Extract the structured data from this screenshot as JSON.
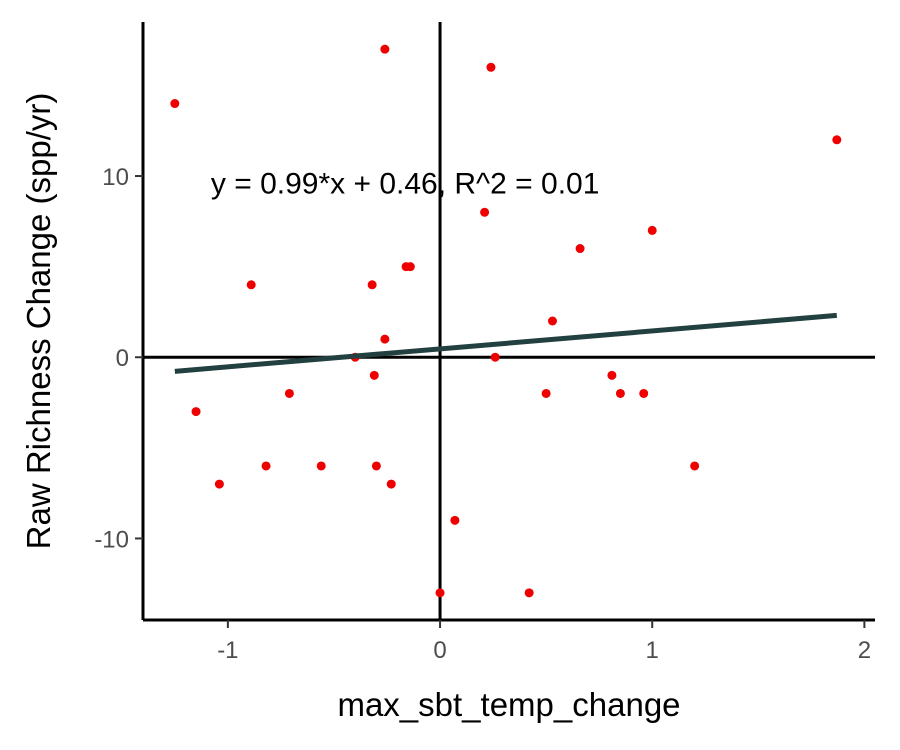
{
  "chart_data": {
    "type": "scatter",
    "title": "",
    "xlabel": "max_sbt_temp_change",
    "ylabel": "Raw Richness Change (spp/yr)",
    "xlim": [
      -1.4,
      2.05
    ],
    "ylim": [
      -14.5,
      18.5
    ],
    "xticks": [
      -1,
      0,
      1,
      2
    ],
    "yticks": [
      -10,
      0,
      10
    ],
    "xtick_labels": [
      "-1",
      "0",
      "1",
      "2"
    ],
    "ytick_labels": [
      "-10",
      "0",
      "10"
    ],
    "reference_lines": {
      "x": 0,
      "y": 0
    },
    "annotation": "y = 0.99*x + 0.46, R^2 = 0.01",
    "annotation_position": {
      "x": -1.08,
      "y": 9.6
    },
    "fit_line": {
      "slope": 0.99,
      "intercept": 0.46,
      "x_range": [
        -1.25,
        1.87
      ],
      "color": "#22403f"
    },
    "point_color": "#ee0000",
    "grid": false,
    "points": [
      {
        "x": -1.25,
        "y": 14
      },
      {
        "x": -0.26,
        "y": 17
      },
      {
        "x": 0.24,
        "y": 16
      },
      {
        "x": 1.87,
        "y": 12
      },
      {
        "x": 0.21,
        "y": 8
      },
      {
        "x": 1.0,
        "y": 7
      },
      {
        "x": 0.66,
        "y": 6
      },
      {
        "x": -0.16,
        "y": 5
      },
      {
        "x": -0.14,
        "y": 5
      },
      {
        "x": -0.89,
        "y": 4
      },
      {
        "x": -0.32,
        "y": 4
      },
      {
        "x": 0.53,
        "y": 2
      },
      {
        "x": -0.26,
        "y": 1
      },
      {
        "x": -0.4,
        "y": 0
      },
      {
        "x": 0.26,
        "y": 0
      },
      {
        "x": -0.31,
        "y": -1
      },
      {
        "x": 0.81,
        "y": -1
      },
      {
        "x": -0.71,
        "y": -2
      },
      {
        "x": 0.5,
        "y": -2
      },
      {
        "x": 0.85,
        "y": -2
      },
      {
        "x": 0.96,
        "y": -2
      },
      {
        "x": -1.15,
        "y": -3
      },
      {
        "x": -0.82,
        "y": -6
      },
      {
        "x": -0.56,
        "y": -6
      },
      {
        "x": -0.3,
        "y": -6
      },
      {
        "x": 1.2,
        "y": -6
      },
      {
        "x": -1.04,
        "y": -7
      },
      {
        "x": -0.23,
        "y": -7
      },
      {
        "x": 0.07,
        "y": -9
      },
      {
        "x": 0.0,
        "y": -13
      },
      {
        "x": 0.42,
        "y": -13
      }
    ]
  }
}
